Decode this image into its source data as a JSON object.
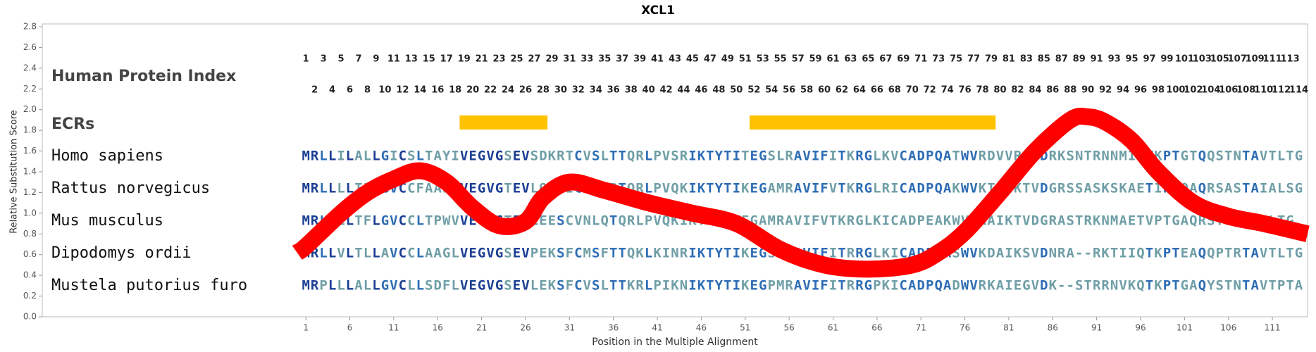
{
  "chart_data": {
    "type": "alignment",
    "title": "XCL1",
    "x_label": "Position in the Multiple Alignment",
    "y_label": "Relative Substitution Score",
    "xlim": [
      -29,
      115
    ],
    "xticks": [
      1,
      6,
      11,
      16,
      21,
      26,
      31,
      36,
      41,
      46,
      51,
      56,
      61,
      66,
      71,
      76,
      81,
      86,
      91,
      96,
      101,
      106,
      111
    ],
    "ylim": [
      0,
      2.8
    ],
    "yticks": [
      {
        "value": 0,
        "label": "0.0"
      },
      {
        "value": 0.2,
        "label": "0.2"
      },
      {
        "value": 0.4,
        "label": "0.4"
      },
      {
        "value": 0.6,
        "label": "0.6"
      },
      {
        "value": 0.8,
        "label": "0.8"
      },
      {
        "value": 1.0,
        "label": "1.0"
      },
      {
        "value": 1.2,
        "label": "1.2"
      },
      {
        "value": 1.4,
        "label": "1.4"
      },
      {
        "value": 1.6,
        "label": "1.6"
      },
      {
        "value": 1.8,
        "label": "1.8"
      },
      {
        "value": 2.0,
        "label": "2.0"
      },
      {
        "value": 2.2,
        "label": "2.2"
      },
      {
        "value": 2.4,
        "label": "2.4"
      },
      {
        "value": 2.6,
        "label": "2.6"
      },
      {
        "value": 2.8,
        "label": "2.8"
      }
    ],
    "index_label": "Human Protein Index",
    "index_numbers": [
      1,
      2,
      3,
      4,
      5,
      6,
      7,
      8,
      9,
      10,
      11,
      12,
      13,
      14,
      15,
      16,
      17,
      18,
      19,
      20,
      21,
      22,
      23,
      24,
      25,
      26,
      27,
      28,
      29,
      30,
      31,
      32,
      33,
      34,
      35,
      36,
      37,
      38,
      39,
      40,
      41,
      42,
      43,
      44,
      45,
      46,
      47,
      48,
      49,
      50,
      51,
      52,
      53,
      54,
      55,
      56,
      57,
      58,
      59,
      60,
      61,
      62,
      63,
      64,
      65,
      66,
      67,
      68,
      69,
      70,
      71,
      72,
      73,
      74,
      75,
      76,
      77,
      78,
      79,
      80,
      81,
      82,
      83,
      84,
      85,
      86,
      87,
      88,
      89,
      90,
      91,
      92,
      93,
      94,
      95,
      96,
      97,
      98,
      99,
      100,
      101,
      102,
      103,
      104,
      105,
      106,
      107,
      108,
      109,
      110,
      111,
      112,
      113,
      114
    ],
    "ecr_label": "ECRs",
    "ecr_color": "#ffc200",
    "ecrs": [
      {
        "start": 19,
        "end": 28
      },
      {
        "start": 52,
        "end": 79
      }
    ],
    "sequences": [
      {
        "name": "Homo sapiens",
        "residues": "MRLLILALLGICSLTAYIVEGVGSEVSDKRTCVSLTTQRLPVSRIKTYTITEGSLRAVIFITKRGLKVCADPQATWVRDVVRSMDRKSNTRNNMIQTKPTGTQQSTNTAVTLTG"
      },
      {
        "name": "Rattus norvegicus",
        "residues": "MRLLLLTFLGVCCFAAWVVEGVGTEVLQESICVSLRTQRLPVQKIKTYTIKEGAMRAVIFVTKRGLRICADPQAKWVKTAIKTVDGRSSASKSKAETIPTQAQRSASTAIALSG"
      },
      {
        "name": "Mus musculus",
        "residues": "MRLLLLTFLGVCCLTPWVVEGVGTEVLEESCVNLQTQRLPVQKIKTYTIWEGAMRAVIFVTKRGLKICADPEAKWVKAAIKTVDGRASTRKNMAETVPTGAQRSTSTAITLTG"
      },
      {
        "name": "Dipodomys ordii",
        "residues": "MRLLVLTLLAVCCLAAGLVEGVGSEVPEKSFCMSFTTQKLKINRIKTYTIKEGSMKAVIFITRRGLKICADPQASWVKDAIKSVDNRA--RKTIIQTKPTEAQQPTRTAVTLTG"
      },
      {
        "name": "Mustela putorius furo",
        "residues": "MRPLLLALLGVCLLSDFLVEGVGSEVLEKSFCVSLTTKRLPIKNIKTYTIKEGPMRAVIFITRRGPKICADPQADWVRKAIEGVDK--STRRNVKQTKPTGAQYSTNTAVTPTA"
      }
    ],
    "curve": {
      "color": "#ff0000",
      "x": [
        0,
        1,
        5,
        8,
        11,
        14,
        17,
        20,
        23,
        26,
        28,
        31,
        35,
        40,
        45,
        50,
        55,
        60,
        65,
        70,
        73,
        76,
        80,
        84,
        88,
        90,
        92,
        95,
        98,
        102,
        106,
        110,
        115
      ],
      "values": [
        0.62,
        0.68,
        1.0,
        1.2,
        1.33,
        1.41,
        1.3,
        1.05,
        0.88,
        0.92,
        1.15,
        1.3,
        1.22,
        1.1,
        1.0,
        0.9,
        0.65,
        0.5,
        0.46,
        0.5,
        0.62,
        0.82,
        1.2,
        1.6,
        1.9,
        1.93,
        1.88,
        1.7,
        1.4,
        1.1,
        0.97,
        0.9,
        0.8
      ]
    }
  }
}
